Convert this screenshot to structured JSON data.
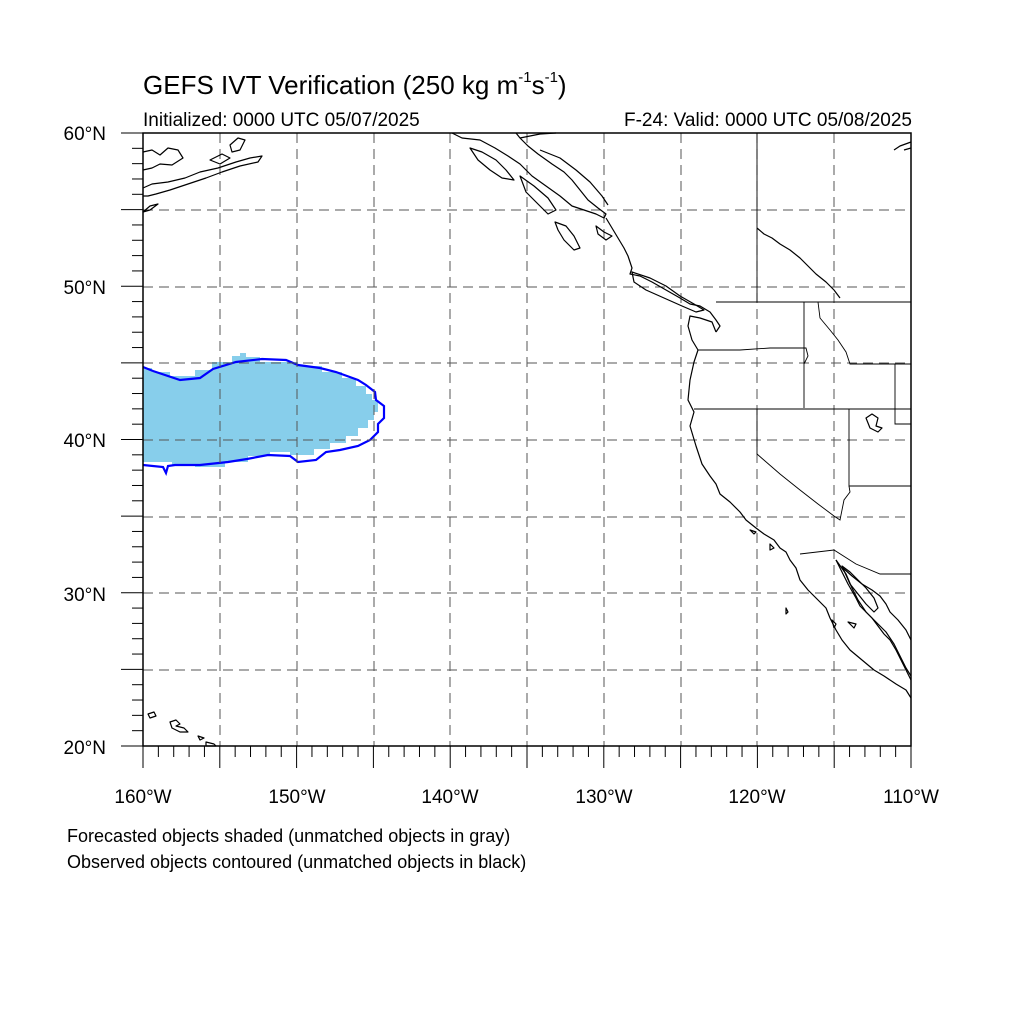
{
  "header": {
    "title_prefix": "GEFS IVT Verification (250 kg m",
    "title_exp1": "-1",
    "title_mid": "s",
    "title_exp2": "-1",
    "title_suffix": ")",
    "initialized": "Initialized: 0000 UTC 05/07/2025",
    "valid": "F-24: Valid: 0000 UTC 05/08/2025"
  },
  "map": {
    "projection": "cylindrical equidistant",
    "lon_range": [
      -160,
      -110
    ],
    "lat_range": [
      20,
      60
    ],
    "grid": "dashed, every 5 degrees",
    "lat_labels": [
      "60°N",
      "50°N",
      "40°N",
      "30°N",
      "20°N"
    ],
    "lon_labels": [
      "160°W",
      "150°W",
      "140°W",
      "130°W",
      "120°W",
      "110°W"
    ],
    "forecast_fill_color": "#87ceeb",
    "observed_contour_color": "#0000ff",
    "coastline_color": "#000000"
  },
  "footer": {
    "note_forecast": "Forecasted objects shaded (unmatched objects in gray)",
    "note_observed": "Observed objects contoured (unmatched objects in black)"
  }
}
